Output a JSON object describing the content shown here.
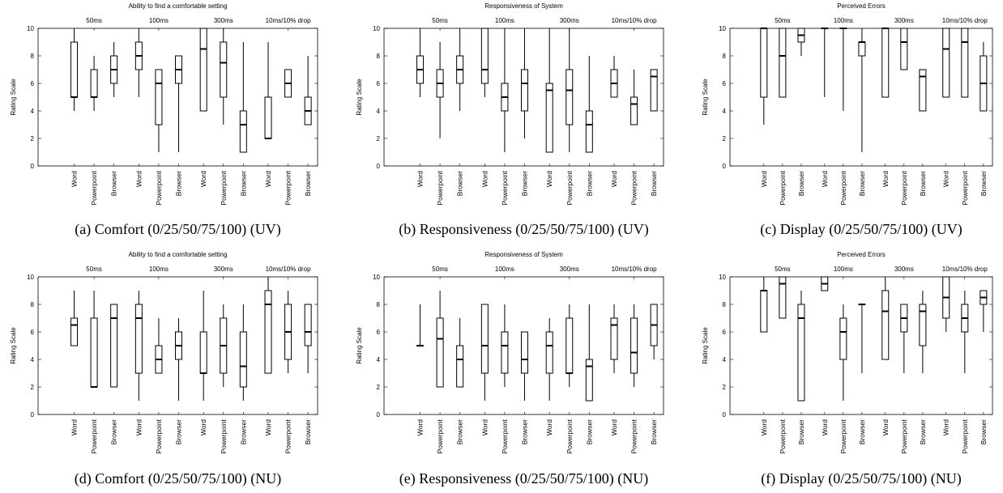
{
  "chart_data": [
    {
      "type": "boxplot",
      "title": "Ability to find a comfortable setting",
      "caption": "(a) Comfort (0/25/50/75/100) (UV)",
      "ylabel": "Rating Scale",
      "ylim": [
        0,
        10
      ],
      "yticks": [
        0,
        2,
        4,
        6,
        8,
        10
      ],
      "groups": [
        "50ms",
        "100ms",
        "300ms",
        "10ms/10% drop"
      ],
      "categories": [
        "Word",
        "Powerpoint",
        "Browser"
      ],
      "series": [
        {
          "group": "50ms",
          "category": "Word",
          "min": 4,
          "q1": 5,
          "median": 5,
          "q3": 9,
          "max": 10
        },
        {
          "group": "50ms",
          "category": "Powerpoint",
          "min": 4,
          "q1": 5,
          "median": 5,
          "q3": 7,
          "max": 8
        },
        {
          "group": "50ms",
          "category": "Browser",
          "min": 5,
          "q1": 6,
          "median": 7,
          "q3": 8,
          "max": 9
        },
        {
          "group": "100ms",
          "category": "Word",
          "min": 5,
          "q1": 7,
          "median": 8,
          "q3": 9,
          "max": 10
        },
        {
          "group": "100ms",
          "category": "Powerpoint",
          "min": 1,
          "q1": 3,
          "median": 6,
          "q3": 7,
          "max": 7
        },
        {
          "group": "100ms",
          "category": "Browser",
          "min": 1,
          "q1": 6,
          "median": 7,
          "q3": 8,
          "max": 8
        },
        {
          "group": "300ms",
          "category": "Word",
          "min": 4,
          "q1": 4,
          "median": 8.5,
          "q3": 10,
          "max": 10
        },
        {
          "group": "300ms",
          "category": "Powerpoint",
          "min": 3,
          "q1": 5,
          "median": 7.5,
          "q3": 9,
          "max": 10
        },
        {
          "group": "300ms",
          "category": "Browser",
          "min": 1,
          "q1": 1,
          "median": 3,
          "q3": 4,
          "max": 9
        },
        {
          "group": "10ms/10% drop",
          "category": "Word",
          "min": 2,
          "q1": 2,
          "median": 2,
          "q3": 5,
          "max": 9
        },
        {
          "group": "10ms/10% drop",
          "category": "Powerpoint",
          "min": 5,
          "q1": 5,
          "median": 6,
          "q3": 7,
          "max": 7
        },
        {
          "group": "10ms/10% drop",
          "category": "Browser",
          "min": 3,
          "q1": 3,
          "median": 4,
          "q3": 5,
          "max": 8
        }
      ]
    },
    {
      "type": "boxplot",
      "title": "Responsiveness of System",
      "caption": "(b) Responsiveness (0/25/50/75/100) (UV)",
      "ylabel": "Rating Scale",
      "ylim": [
        0,
        10
      ],
      "yticks": [
        0,
        2,
        4,
        6,
        8,
        10
      ],
      "groups": [
        "50ms",
        "100ms",
        "300ms",
        "10ms/10% drop"
      ],
      "categories": [
        "Word",
        "Powerpoint",
        "Browser"
      ],
      "series": [
        {
          "group": "50ms",
          "category": "Word",
          "min": 5,
          "q1": 6,
          "median": 7,
          "q3": 8,
          "max": 10
        },
        {
          "group": "50ms",
          "category": "Powerpoint",
          "min": 2,
          "q1": 5,
          "median": 6,
          "q3": 7,
          "max": 9
        },
        {
          "group": "50ms",
          "category": "Browser",
          "min": 4,
          "q1": 6,
          "median": 7,
          "q3": 8,
          "max": 10
        },
        {
          "group": "100ms",
          "category": "Word",
          "min": 5,
          "q1": 6,
          "median": 7,
          "q3": 10,
          "max": 10
        },
        {
          "group": "100ms",
          "category": "Powerpoint",
          "min": 1,
          "q1": 4,
          "median": 5,
          "q3": 6,
          "max": 10
        },
        {
          "group": "100ms",
          "category": "Browser",
          "min": 2,
          "q1": 4,
          "median": 6,
          "q3": 7,
          "max": 10
        },
        {
          "group": "300ms",
          "category": "Word",
          "min": 1,
          "q1": 1,
          "median": 5.5,
          "q3": 6,
          "max": 10
        },
        {
          "group": "300ms",
          "category": "Powerpoint",
          "min": 1,
          "q1": 3,
          "median": 5.5,
          "q3": 7,
          "max": 10
        },
        {
          "group": "300ms",
          "category": "Browser",
          "min": 1,
          "q1": 1,
          "median": 3,
          "q3": 4,
          "max": 8
        },
        {
          "group": "10ms/10% drop",
          "category": "Word",
          "min": 5,
          "q1": 5,
          "median": 6,
          "q3": 7,
          "max": 8
        },
        {
          "group": "10ms/10% drop",
          "category": "Powerpoint",
          "min": 3,
          "q1": 3,
          "median": 4.5,
          "q3": 5,
          "max": 7
        },
        {
          "group": "10ms/10% drop",
          "category": "Browser",
          "min": 4,
          "q1": 4,
          "median": 6.5,
          "q3": 7,
          "max": 7
        }
      ]
    },
    {
      "type": "boxplot",
      "title": "Perceived Errors",
      "caption": "(c) Display (0/25/50/75/100) (UV)",
      "ylabel": "Rating Scale",
      "ylim": [
        0,
        10
      ],
      "yticks": [
        0,
        2,
        4,
        6,
        8,
        10
      ],
      "groups": [
        "50ms",
        "100ms",
        "300ms",
        "10ms/10% drop"
      ],
      "categories": [
        "Word",
        "Powerpoint",
        "Browser"
      ],
      "series": [
        {
          "group": "50ms",
          "category": "Word",
          "min": 3,
          "q1": 5,
          "median": 10,
          "q3": 10,
          "max": 10
        },
        {
          "group": "50ms",
          "category": "Powerpoint",
          "min": 5,
          "q1": 5,
          "median": 8,
          "q3": 10,
          "max": 10
        },
        {
          "group": "50ms",
          "category": "Browser",
          "min": 8,
          "q1": 9,
          "median": 9.5,
          "q3": 10,
          "max": 10
        },
        {
          "group": "100ms",
          "category": "Word",
          "min": 5,
          "q1": 10,
          "median": 10,
          "q3": 10,
          "max": 10
        },
        {
          "group": "100ms",
          "category": "Powerpoint",
          "min": 4,
          "q1": 10,
          "median": 10,
          "q3": 10,
          "max": 10
        },
        {
          "group": "100ms",
          "category": "Browser",
          "min": 1,
          "q1": 8,
          "median": 9,
          "q3": 9,
          "max": 10
        },
        {
          "group": "300ms",
          "category": "Word",
          "min": 5,
          "q1": 5,
          "median": 10,
          "q3": 10,
          "max": 10
        },
        {
          "group": "300ms",
          "category": "Powerpoint",
          "min": 7,
          "q1": 7,
          "median": 9,
          "q3": 10,
          "max": 10
        },
        {
          "group": "300ms",
          "category": "Browser",
          "min": 4,
          "q1": 4,
          "median": 6.5,
          "q3": 7,
          "max": 7
        },
        {
          "group": "10ms/10% drop",
          "category": "Word",
          "min": 5,
          "q1": 5,
          "median": 8.5,
          "q3": 10,
          "max": 10
        },
        {
          "group": "10ms/10% drop",
          "category": "Powerpoint",
          "min": 5,
          "q1": 5,
          "median": 9,
          "q3": 10,
          "max": 10
        },
        {
          "group": "10ms/10% drop",
          "category": "Browser",
          "min": 4,
          "q1": 4,
          "median": 6,
          "q3": 8,
          "max": 9
        }
      ]
    },
    {
      "type": "boxplot",
      "title": "Ability to find a comfortable setting",
      "caption": "(d) Comfort (0/25/50/75/100) (NU)",
      "ylabel": "Rating Scale",
      "ylim": [
        0,
        10
      ],
      "yticks": [
        0,
        2,
        4,
        6,
        8,
        10
      ],
      "groups": [
        "50ms",
        "100ms",
        "300ms",
        "10ms/10% drop"
      ],
      "categories": [
        "Word",
        "Powerpoint",
        "Browser"
      ],
      "series": [
        {
          "group": "50ms",
          "category": "Word",
          "min": 5,
          "q1": 5,
          "median": 6.5,
          "q3": 7,
          "max": 9
        },
        {
          "group": "50ms",
          "category": "Powerpoint",
          "min": 2,
          "q1": 2,
          "median": 2,
          "q3": 7,
          "max": 9
        },
        {
          "group": "50ms",
          "category": "Browser",
          "min": 2,
          "q1": 2,
          "median": 7,
          "q3": 8,
          "max": 8
        },
        {
          "group": "100ms",
          "category": "Word",
          "min": 1,
          "q1": 3,
          "median": 7,
          "q3": 8,
          "max": 9
        },
        {
          "group": "100ms",
          "category": "Powerpoint",
          "min": 3,
          "q1": 3,
          "median": 4,
          "q3": 5,
          "max": 7
        },
        {
          "group": "100ms",
          "category": "Browser",
          "min": 1,
          "q1": 4,
          "median": 5,
          "q3": 6,
          "max": 7
        },
        {
          "group": "300ms",
          "category": "Word",
          "min": 1,
          "q1": 3,
          "median": 3,
          "q3": 6,
          "max": 9
        },
        {
          "group": "300ms",
          "category": "Powerpoint",
          "min": 2,
          "q1": 3,
          "median": 5,
          "q3": 7,
          "max": 8
        },
        {
          "group": "300ms",
          "category": "Browser",
          "min": 1,
          "q1": 2,
          "median": 3.5,
          "q3": 6,
          "max": 8
        },
        {
          "group": "10ms/10% drop",
          "category": "Word",
          "min": 3,
          "q1": 3,
          "median": 8,
          "q3": 9,
          "max": 10
        },
        {
          "group": "10ms/10% drop",
          "category": "Powerpoint",
          "min": 3,
          "q1": 4,
          "median": 6,
          "q3": 8,
          "max": 9
        },
        {
          "group": "10ms/10% drop",
          "category": "Browser",
          "min": 3,
          "q1": 5,
          "median": 6,
          "q3": 8,
          "max": 8
        }
      ]
    },
    {
      "type": "boxplot",
      "title": "Responsiveness of System",
      "caption": "(e) Responsiveness (0/25/50/75/100) (NU)",
      "ylabel": "Rating Scale",
      "ylim": [
        0,
        10
      ],
      "yticks": [
        0,
        2,
        4,
        6,
        8,
        10
      ],
      "groups": [
        "50ms",
        "100ms",
        "300ms",
        "10ms/10% drop"
      ],
      "categories": [
        "Word",
        "Powerpoint",
        "Browser"
      ],
      "series": [
        {
          "group": "50ms",
          "category": "Word",
          "min": 5,
          "q1": 5,
          "median": 5,
          "q3": 5,
          "max": 8
        },
        {
          "group": "50ms",
          "category": "Powerpoint",
          "min": 2,
          "q1": 2,
          "median": 5.5,
          "q3": 7,
          "max": 9
        },
        {
          "group": "50ms",
          "category": "Browser",
          "min": 2,
          "q1": 2,
          "median": 4,
          "q3": 5,
          "max": 7
        },
        {
          "group": "100ms",
          "category": "Word",
          "min": 1,
          "q1": 3,
          "median": 5,
          "q3": 8,
          "max": 8
        },
        {
          "group": "100ms",
          "category": "Powerpoint",
          "min": 2,
          "q1": 3,
          "median": 5,
          "q3": 6,
          "max": 8
        },
        {
          "group": "100ms",
          "category": "Browser",
          "min": 1,
          "q1": 3,
          "median": 4,
          "q3": 6,
          "max": 6
        },
        {
          "group": "300ms",
          "category": "Word",
          "min": 1,
          "q1": 3,
          "median": 5,
          "q3": 6,
          "max": 7
        },
        {
          "group": "300ms",
          "category": "Powerpoint",
          "min": 2,
          "q1": 3,
          "median": 3,
          "q3": 7,
          "max": 8
        },
        {
          "group": "300ms",
          "category": "Browser",
          "min": 1,
          "q1": 1,
          "median": 3.5,
          "q3": 4,
          "max": 8
        },
        {
          "group": "10ms/10% drop",
          "category": "Word",
          "min": 3,
          "q1": 4,
          "median": 6.5,
          "q3": 7,
          "max": 8
        },
        {
          "group": "10ms/10% drop",
          "category": "Powerpoint",
          "min": 2,
          "q1": 3,
          "median": 4.5,
          "q3": 7,
          "max": 8
        },
        {
          "group": "10ms/10% drop",
          "category": "Browser",
          "min": 4,
          "q1": 5,
          "median": 6.5,
          "q3": 8,
          "max": 8
        }
      ]
    },
    {
      "type": "boxplot",
      "title": "Perceived Errors",
      "caption": "(f) Display (0/25/50/75/100) (NU)",
      "ylabel": "Rating Scale",
      "ylim": [
        0,
        10
      ],
      "yticks": [
        0,
        2,
        4,
        6,
        8,
        10
      ],
      "groups": [
        "50ms",
        "100ms",
        "300ms",
        "10ms/10% drop"
      ],
      "categories": [
        "Word",
        "Powerpoint",
        "Browser"
      ],
      "series": [
        {
          "group": "50ms",
          "category": "Word",
          "min": 6,
          "q1": 6,
          "median": 9,
          "q3": 9,
          "max": 10
        },
        {
          "group": "50ms",
          "category": "Powerpoint",
          "min": 7,
          "q1": 7,
          "median": 9.5,
          "q3": 10,
          "max": 10
        },
        {
          "group": "50ms",
          "category": "Browser",
          "min": 1,
          "q1": 1,
          "median": 7,
          "q3": 8,
          "max": 9
        },
        {
          "group": "100ms",
          "category": "Word",
          "min": 9,
          "q1": 9,
          "median": 9.5,
          "q3": 10,
          "max": 10
        },
        {
          "group": "100ms",
          "category": "Powerpoint",
          "min": 1,
          "q1": 4,
          "median": 6,
          "q3": 7,
          "max": 8
        },
        {
          "group": "100ms",
          "category": "Browser",
          "min": 3,
          "q1": 8,
          "median": 8,
          "q3": 8,
          "max": 8
        },
        {
          "group": "300ms",
          "category": "Word",
          "min": 4,
          "q1": 4,
          "median": 7.5,
          "q3": 9,
          "max": 10
        },
        {
          "group": "300ms",
          "category": "Powerpoint",
          "min": 3,
          "q1": 6,
          "median": 7,
          "q3": 8,
          "max": 8
        },
        {
          "group": "300ms",
          "category": "Browser",
          "min": 3,
          "q1": 5,
          "median": 7.5,
          "q3": 8,
          "max": 9
        },
        {
          "group": "10ms/10% drop",
          "category": "Word",
          "min": 6,
          "q1": 7,
          "median": 8.5,
          "q3": 10,
          "max": 10
        },
        {
          "group": "10ms/10% drop",
          "category": "Powerpoint",
          "min": 3,
          "q1": 6,
          "median": 7,
          "q3": 8,
          "max": 9
        },
        {
          "group": "10ms/10% drop",
          "category": "Browser",
          "min": 6,
          "q1": 8,
          "median": 8.5,
          "q3": 9,
          "max": 9
        }
      ]
    }
  ]
}
